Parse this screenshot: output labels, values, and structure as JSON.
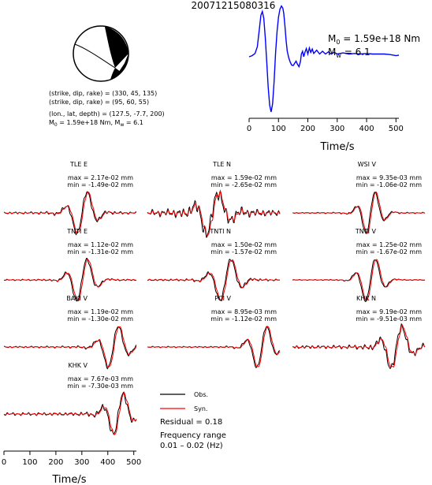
{
  "title": "20071215080316",
  "focal_mechanism": {
    "beachball_icon": "focal-mechanism-beachball-icon",
    "lines": [
      "(strike, dip, rake) = (330, 45, 135)",
      "(strike, dip, rake) = (95, 60, 55)",
      "(lon., lat, depth) = (127.5, -7.7, 200)"
    ],
    "m0_prefix": "M",
    "m0_sub": "0",
    "m0_mid": " = 1.59e+18 Nm, M",
    "mw_sub": "w",
    "mw_tail": " = 6.1"
  },
  "stf": {
    "m0_main": "M",
    "m0_sub": "0",
    "m0_value": " = 1.59e+18 Nm",
    "mw_main": "M",
    "mw_sub": "w",
    "mw_value": " = 6.1"
  },
  "legend": {
    "obs_label": "Obs.",
    "syn_label": "Syn.",
    "residual": "Residual = 0.18",
    "freq_label": "Frequency range",
    "freq_value": "0.01 – 0.02 (Hz)"
  },
  "chart_data": [
    {
      "type": "line",
      "id": "source-time-function",
      "xlabel": "Time/s",
      "xlim": [
        0,
        510
      ],
      "xticks": [
        "0",
        "100",
        "200",
        "300",
        "400",
        "500"
      ],
      "series": [
        {
          "color": "#0000ff",
          "x": [
            0,
            10,
            20,
            28,
            35,
            40,
            45,
            50,
            55,
            60,
            65,
            70,
            75,
            80,
            85,
            90,
            95,
            100,
            105,
            110,
            115,
            118,
            122,
            126,
            130,
            135,
            140,
            145,
            150,
            155,
            160,
            165,
            170,
            175,
            178,
            182,
            186,
            190,
            195,
            200,
            205,
            210,
            215,
            220,
            230,
            240,
            250,
            260,
            270,
            280,
            290,
            300,
            320,
            340,
            360,
            380,
            400,
            420,
            440,
            460,
            480,
            500,
            510
          ],
          "y": [
            0.0,
            0.02,
            0.06,
            0.18,
            0.5,
            0.75,
            0.82,
            0.7,
            0.35,
            -0.1,
            -0.55,
            -0.88,
            -1.0,
            -0.85,
            -0.45,
            0.05,
            0.45,
            0.72,
            0.86,
            0.92,
            0.88,
            0.78,
            0.55,
            0.3,
            0.1,
            -0.02,
            -0.1,
            -0.15,
            -0.16,
            -0.12,
            -0.08,
            -0.14,
            -0.18,
            -0.08,
            0.05,
            0.1,
            0.0,
            0.08,
            0.15,
            0.05,
            0.16,
            0.08,
            0.14,
            0.06,
            0.12,
            0.05,
            0.1,
            0.05,
            0.09,
            0.05,
            0.08,
            0.05,
            0.07,
            0.05,
            0.06,
            0.05,
            0.06,
            0.05,
            0.05,
            0.05,
            0.04,
            0.02,
            0.03
          ]
        }
      ]
    },
    {
      "type": "line",
      "id": "waveform-panels",
      "xlabel": "Time/s",
      "xlim": [
        0,
        510
      ],
      "xticks": [
        "0",
        "100",
        "200",
        "300",
        "400",
        "500"
      ],
      "series": [
        {
          "name": "Obs.",
          "color": "#000000"
        },
        {
          "name": "Syn.",
          "color": "#ff0000"
        }
      ],
      "panels": [
        {
          "station": "TLE E",
          "max": "max = 2.17e-02 mm",
          "min": "min = -1.49e-02 mm",
          "peak": 300,
          "width": 40,
          "noise": 0.12
        },
        {
          "station": "TLE N",
          "max": "max = 1.59e-02 mm",
          "min": "min = -2.65e-02 mm",
          "peak": 250,
          "width": 45,
          "noise": 0.35
        },
        {
          "station": "WSI V",
          "max": "max = 9.35e-03 mm",
          "min": "min = -1.06e-02 mm",
          "peak": 300,
          "width": 35,
          "noise": 0.06
        },
        {
          "station": "TNTI E",
          "max": "max = 1.12e-02 mm",
          "min": "min = -1.31e-02 mm",
          "peak": 300,
          "width": 40,
          "noise": 0.08
        },
        {
          "station": "TNTI N",
          "max": "max = 1.50e-02 mm",
          "min": "min = -1.57e-02 mm",
          "peak": 300,
          "width": 42,
          "noise": 0.1
        },
        {
          "station": "TNTI V",
          "max": "max = 1.25e-02 mm",
          "min": "min = -1.67e-02 mm",
          "peak": 300,
          "width": 38,
          "noise": 0.05
        },
        {
          "station": "BAKI V",
          "max": "max = 1.19e-02 mm",
          "min": "min = -1.30e-02 mm",
          "peak": 420,
          "width": 40,
          "noise": 0.1
        },
        {
          "station": "PCI V",
          "max": "max = 8.95e-03 mm",
          "min": "min = -1.12e-02 mm",
          "peak": 440,
          "width": 38,
          "noise": 0.08
        },
        {
          "station": "KHK N",
          "max": "max = 9.19e-02 mm",
          "min": "min = -9.51e-03 mm",
          "peak": 400,
          "width": 42,
          "noise": 0.2
        },
        {
          "station": "KHK V",
          "max": "max = 7.67e-03 mm",
          "min": "min = -7.30e-03 mm",
          "peak": 440,
          "width": 38,
          "noise": 0.18
        }
      ]
    }
  ]
}
